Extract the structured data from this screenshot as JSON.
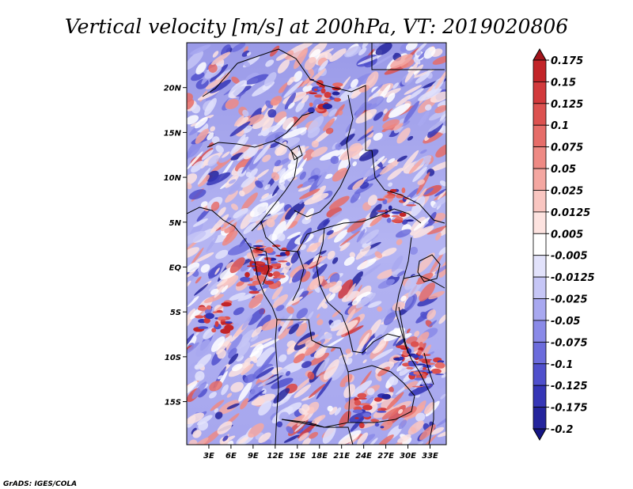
{
  "chart_data": {
    "type": "heatmap",
    "title": "Vertical velocity [m/s] at 200hPa, VT: 2019020806",
    "xlabel": "",
    "ylabel": "",
    "x_ticks": [
      "3E",
      "6E",
      "9E",
      "12E",
      "15E",
      "18E",
      "21E",
      "24E",
      "27E",
      "30E",
      "33E"
    ],
    "y_ticks": [
      "20N",
      "15N",
      "10N",
      "5N",
      "EQ",
      "5S",
      "10S",
      "15S"
    ],
    "x_tick_values": [
      3,
      6,
      9,
      12,
      15,
      18,
      21,
      24,
      27,
      30,
      33
    ],
    "y_tick_values": [
      20,
      15,
      10,
      5,
      0,
      -5,
      -10,
      -15
    ],
    "xlim": [
      0,
      35.2
    ],
    "ylim": [
      -19.8,
      25
    ],
    "colorbar": {
      "levels": [
        "0.175",
        "0.15",
        "0.125",
        "0.1",
        "0.075",
        "0.05",
        "0.025",
        "0.0125",
        "0.005",
        "-0.005",
        "-0.0125",
        "-0.025",
        "-0.05",
        "-0.075",
        "-0.1",
        "-0.125",
        "-0.175",
        "-0.2"
      ],
      "colors": [
        "#a3151c",
        "#c22428",
        "#d23a3c",
        "#dc5250",
        "#e66d69",
        "#ee8a84",
        "#f4a7a1",
        "#f9c6c1",
        "#fde3e0",
        "#ffffff",
        "#e2e2fb",
        "#c6c6f6",
        "#a8a8f0",
        "#8a8ae8",
        "#6c6cdc",
        "#5050cc",
        "#3636b6",
        "#24249c",
        "#161685"
      ]
    },
    "credit": "GrADS: IGES/COLA"
  }
}
